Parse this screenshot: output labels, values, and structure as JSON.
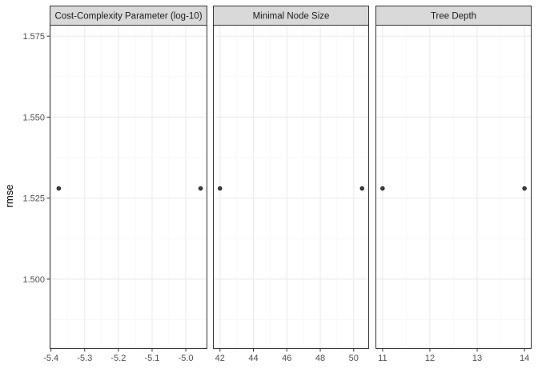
{
  "chart_data": {
    "type": "scatter",
    "title": "",
    "ylabel": "rmse",
    "xlabel": "",
    "grid": true,
    "legend": "none",
    "y": {
      "lim": [
        1.4785,
        1.5785
      ],
      "ticks": [
        1.5,
        1.525,
        1.55,
        1.575
      ],
      "tick_labels": [
        "1.500",
        "1.525",
        "1.550",
        "1.575"
      ],
      "minor_ticks": [
        1.4875,
        1.5125,
        1.5375,
        1.5625
      ]
    },
    "panels": [
      {
        "strip": "Cost-Complexity Parameter (log-10)",
        "xlim": [
          -5.404,
          -4.936
        ],
        "x_ticks": [
          -5.4,
          -5.3,
          -5.2,
          -5.1,
          -5.0
        ],
        "x_tick_labels": [
          "-5.4",
          "-5.3",
          "-5.2",
          "-5.1",
          "-5.0"
        ],
        "x_minor": [
          -5.35,
          -5.25,
          -5.15,
          -5.05,
          -4.95
        ],
        "points": [
          {
            "x": -5.377,
            "y": 1.528
          },
          {
            "x": -4.956,
            "y": 1.528
          }
        ]
      },
      {
        "strip": "Minimal Node Size",
        "xlim": [
          41.58,
          50.92
        ],
        "x_ticks": [
          42,
          44,
          46,
          48,
          50
        ],
        "x_tick_labels": [
          "42",
          "44",
          "46",
          "48",
          "50"
        ],
        "x_minor": [
          43,
          45,
          47,
          49
        ],
        "points": [
          {
            "x": 42,
            "y": 1.528
          },
          {
            "x": 50.5,
            "y": 1.528
          }
        ]
      },
      {
        "strip": "Tree Depth",
        "xlim": [
          10.85,
          14.15
        ],
        "x_ticks": [
          11,
          12,
          13,
          14
        ],
        "x_tick_labels": [
          "11",
          "12",
          "13",
          "14"
        ],
        "x_minor": [
          11.5,
          12.5,
          13.5
        ],
        "points": [
          {
            "x": 11,
            "y": 1.528
          },
          {
            "x": 14,
            "y": 1.528
          }
        ]
      }
    ],
    "colors": {
      "strip_fill": "#d9d9d9",
      "panel_border": "#333333",
      "grid_major": "#ebebeb",
      "grid_minor": "#f5f5f5",
      "point_fill": "#444444",
      "point_stroke": "#000000"
    }
  }
}
